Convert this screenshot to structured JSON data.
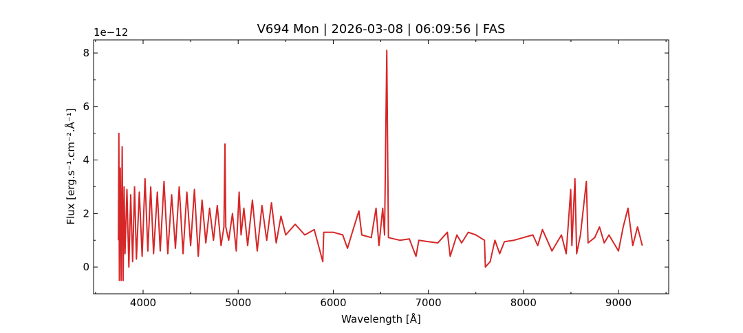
{
  "chart_data": {
    "type": "line",
    "title": "V694 Mon | 2026-03-08 | 06:09:56 | FAS",
    "x_label": "Wavelength [Å]",
    "y_label": "Flux [erg.s⁻¹.cm⁻².Å⁻¹]",
    "y_offset_label": "1e−12",
    "xlim": [
      3479,
      9528
    ],
    "ylim": [
      -1.0,
      8.49
    ],
    "xticks": [
      4000,
      5000,
      6000,
      7000,
      8000,
      9000
    ],
    "yticks": [
      0,
      2,
      4,
      6,
      8
    ],
    "xminorticks": [
      3500,
      4500,
      5500,
      6500,
      7500,
      8500,
      9500
    ],
    "yminorticks": [
      -1,
      1,
      3,
      5,
      7
    ],
    "series": [
      {
        "color": "#d62728",
        "x": [
          3740,
          3745,
          3750,
          3760,
          3770,
          3780,
          3790,
          3800,
          3810,
          3830,
          3850,
          3870,
          3890,
          3910,
          3930,
          3960,
          3990,
          4020,
          4050,
          4080,
          4110,
          4150,
          4180,
          4220,
          4260,
          4300,
          4340,
          4380,
          4420,
          4460,
          4500,
          4540,
          4580,
          4620,
          4660,
          4700,
          4740,
          4780,
          4820,
          4850,
          4861,
          4870,
          4900,
          4940,
          4980,
          5010,
          5030,
          5060,
          5100,
          5150,
          5200,
          5250,
          5300,
          5350,
          5400,
          5450,
          5500,
          5600,
          5700,
          5800,
          5890,
          5900,
          6000,
          6100,
          6150,
          6200,
          6270,
          6300,
          6400,
          6450,
          6480,
          6520,
          6540,
          6563,
          6580,
          6700,
          6800,
          6870,
          6900,
          7000,
          7100,
          7200,
          7230,
          7300,
          7350,
          7420,
          7500,
          7590,
          7600,
          7650,
          7700,
          7750,
          7800,
          7900,
          8000,
          8100,
          8150,
          8200,
          8300,
          8400,
          8450,
          8498,
          8510,
          8542,
          8560,
          8600,
          8662,
          8680,
          8750,
          8800,
          8850,
          8900,
          9000,
          9050,
          9100,
          9150,
          9200,
          9250
        ],
        "values": [
          1.0,
          5.0,
          -0.5,
          3.7,
          -0.5,
          4.5,
          -0.5,
          3.0,
          0.5,
          2.9,
          0.0,
          2.7,
          0.2,
          3.0,
          0.3,
          2.8,
          0.4,
          3.3,
          0.6,
          3.0,
          0.5,
          2.8,
          0.6,
          3.2,
          0.5,
          2.7,
          0.7,
          3.0,
          0.5,
          2.8,
          0.8,
          2.9,
          0.4,
          2.5,
          0.9,
          2.2,
          1.0,
          2.3,
          0.8,
          1.5,
          4.6,
          1.5,
          1.0,
          2.0,
          0.6,
          2.8,
          1.2,
          2.2,
          0.8,
          2.5,
          0.6,
          2.3,
          1.0,
          2.4,
          0.9,
          1.9,
          1.2,
          1.6,
          1.2,
          1.4,
          0.2,
          1.3,
          1.3,
          1.2,
          0.7,
          1.3,
          2.1,
          1.2,
          1.1,
          2.2,
          0.8,
          2.2,
          1.2,
          8.1,
          1.1,
          1.0,
          1.05,
          0.4,
          1.0,
          0.95,
          0.9,
          1.3,
          0.4,
          1.2,
          0.9,
          1.3,
          1.2,
          1.0,
          0.0,
          0.2,
          1.0,
          0.5,
          0.95,
          1.0,
          1.1,
          1.2,
          0.8,
          1.4,
          0.6,
          1.2,
          0.5,
          2.9,
          0.8,
          3.3,
          0.5,
          1.2,
          3.2,
          0.9,
          1.1,
          1.5,
          0.9,
          1.2,
          0.6,
          1.5,
          2.2,
          0.8,
          1.5,
          0.8
        ]
      }
    ]
  }
}
